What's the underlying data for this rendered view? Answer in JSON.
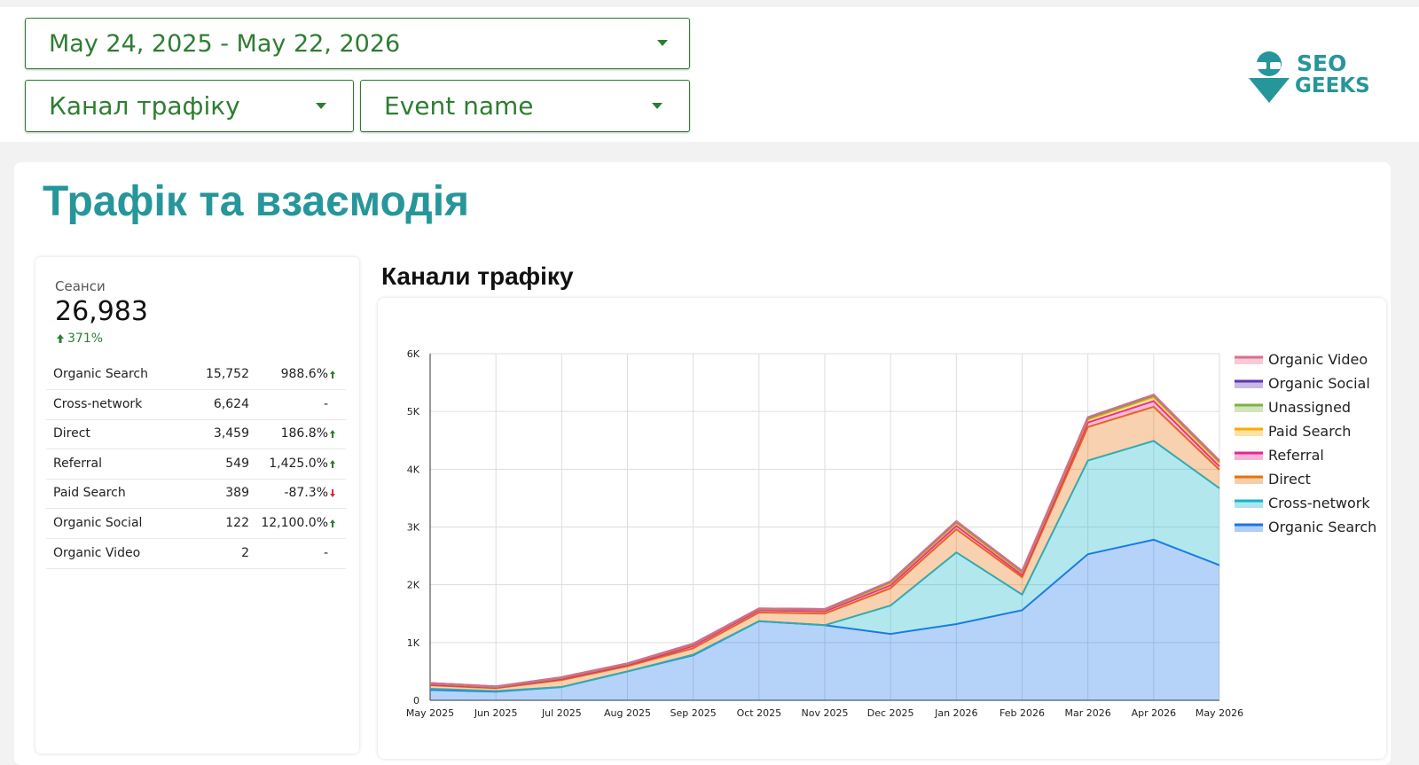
{
  "filters": {
    "date_range": "May 24, 2025 - May 22, 2026",
    "channel": "Канал трафіку",
    "event": "Event name"
  },
  "logo": {
    "line1": "SEO",
    "line2": "GEEKS"
  },
  "section_title": "Трафік та взаємодія",
  "scorecard": {
    "label": "Сеанси",
    "value": "26,983",
    "change": "371%",
    "trend": "up"
  },
  "table": {
    "rows": [
      [
        "Organic Search",
        "15,752",
        "988.6%"
      ],
      [
        "Cross-network",
        "6,624",
        "-"
      ],
      [
        "Direct",
        "3,459",
        "186.8%"
      ],
      [
        "Referral",
        "549",
        "1,425.0%"
      ],
      [
        "Paid Search",
        "389",
        "-87.3%"
      ],
      [
        "Organic Social",
        "122",
        "12,100.0%"
      ],
      [
        "Organic Video",
        "2",
        "-"
      ]
    ],
    "trends": [
      "up",
      null,
      "up",
      "up",
      "down",
      "up",
      null
    ]
  },
  "chart_data": {
    "type": "area",
    "stacked": true,
    "title": "Канали трафіку",
    "categories": [
      "May 2025",
      "Jun 2025",
      "Jul 2025",
      "Aug 2025",
      "Sep 2025",
      "Oct 2025",
      "Nov 2025",
      "Dec 2025",
      "Jan 2026",
      "Feb 2026",
      "Mar 2026",
      "Apr 2026",
      "May 2026"
    ],
    "ylim": [
      0,
      6000
    ],
    "yticks": [
      0,
      {
        "value": 1000,
        "label": "1K"
      },
      {
        "value": 2000,
        "label": "2K"
      },
      {
        "value": 3000,
        "label": "3K"
      },
      {
        "value": 4000,
        "label": "4K"
      },
      {
        "value": 5000,
        "label": "5K"
      },
      {
        "value": 6000,
        "label": "6K"
      }
    ],
    "grid": true,
    "legend": "right",
    "series": [
      {
        "name": "Organic Search",
        "color": "#1a73e8",
        "values": [
          180,
          150,
          230,
          500,
          780,
          1370,
          1300,
          1150,
          1320,
          1560,
          2530,
          2780,
          2340
        ]
      },
      {
        "name": "Cross-network",
        "color": "#12b5cb",
        "values": [
          20,
          10,
          0,
          0,
          10,
          0,
          0,
          490,
          1240,
          270,
          1620,
          1710,
          1330
        ]
      },
      {
        "name": "Direct",
        "color": "#e8710a",
        "values": [
          60,
          50,
          120,
          90,
          110,
          150,
          200,
          300,
          400,
          300,
          580,
          590,
          320
        ]
      },
      {
        "name": "Referral",
        "color": "#e52592",
        "values": [
          10,
          10,
          20,
          20,
          40,
          40,
          40,
          50,
          60,
          40,
          80,
          100,
          60
        ]
      },
      {
        "name": "Paid Search",
        "color": "#f9ab00",
        "values": [
          20,
          10,
          20,
          20,
          30,
          20,
          30,
          40,
          50,
          40,
          50,
          70,
          60
        ]
      },
      {
        "name": "Unassigned",
        "color": "#7cb342",
        "values": [
          0,
          0,
          0,
          0,
          0,
          0,
          0,
          10,
          10,
          10,
          20,
          20,
          20
        ]
      },
      {
        "name": "Organic Social",
        "color": "#5e35b1",
        "values": [
          10,
          10,
          10,
          10,
          10,
          10,
          10,
          20,
          20,
          20,
          20,
          20,
          20
        ]
      },
      {
        "name": "Organic Video",
        "color": "#e06b8b",
        "values": [
          0,
          0,
          0,
          0,
          0,
          0,
          0,
          0,
          0,
          0,
          0,
          0,
          0
        ]
      }
    ]
  }
}
